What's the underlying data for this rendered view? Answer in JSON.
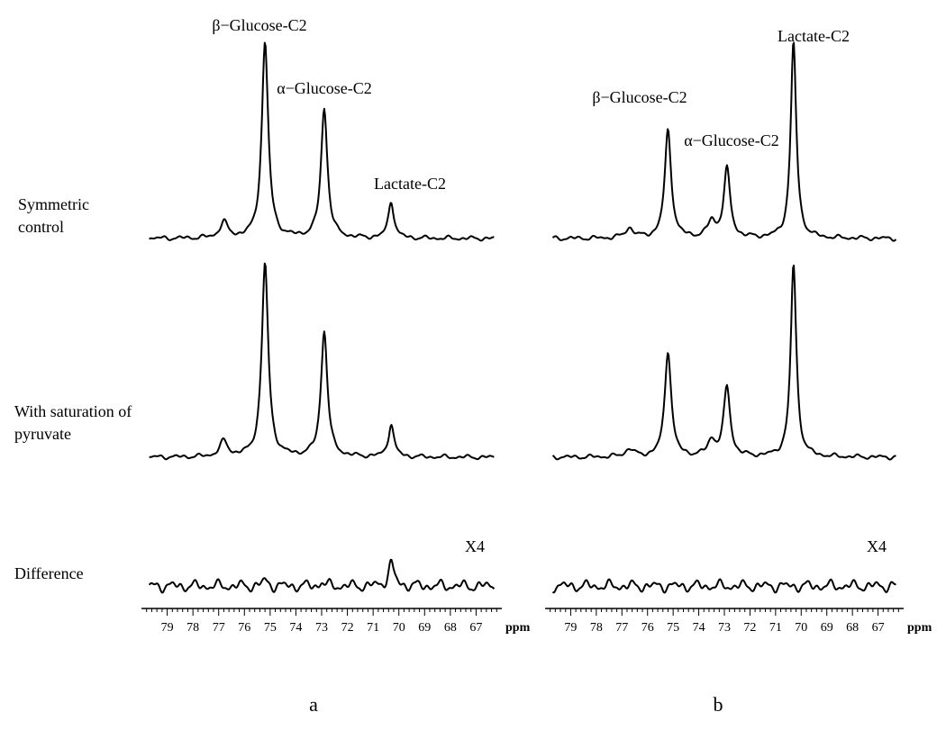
{
  "row_labels": {
    "symmetric": [
      "Symmetric",
      "control"
    ],
    "saturation": [
      "With saturation of",
      "pyruvate"
    ],
    "difference": [
      "Difference"
    ]
  },
  "panel_labels": [
    "a",
    "b"
  ],
  "chart_data": [
    {
      "type": "line",
      "panel": "a",
      "x_unit": "ppm",
      "xlim": [
        80,
        66
      ],
      "x_ticks": [
        79,
        78,
        77,
        76,
        75,
        74,
        73,
        72,
        71,
        70,
        69,
        68,
        67
      ],
      "spectra": [
        {
          "row": "symmetric",
          "peaks": [
            {
              "ppm": 76.8,
              "height": 0.08,
              "width": 0.18
            },
            {
              "ppm": 75.2,
              "height": 1.0,
              "width": 0.15
            },
            {
              "ppm": 72.9,
              "height": 0.66,
              "width": 0.15
            },
            {
              "ppm": 70.3,
              "height": 0.19,
              "width": 0.13
            }
          ],
          "annotations": [
            {
              "text": "β−Glucose-C2",
              "ppm": 75.2
            },
            {
              "text": "α−Glucose-C2",
              "ppm": 72.9
            },
            {
              "text": "Lactate-C2",
              "ppm": 70.3
            }
          ]
        },
        {
          "row": "saturation",
          "peaks": [
            {
              "ppm": 76.8,
              "height": 0.08,
              "width": 0.18
            },
            {
              "ppm": 75.2,
              "height": 1.0,
              "width": 0.15
            },
            {
              "ppm": 72.9,
              "height": 0.65,
              "width": 0.15
            },
            {
              "ppm": 70.3,
              "height": 0.17,
              "width": 0.13
            }
          ],
          "annotations": []
        },
        {
          "row": "difference",
          "scale_note": "X4",
          "peaks": [
            {
              "ppm": 75.2,
              "height": 0.2,
              "width": 0.12
            },
            {
              "ppm": 73.0,
              "height": 0.15,
              "width": 0.1
            },
            {
              "ppm": 70.3,
              "height": 0.85,
              "width": 0.13
            }
          ],
          "annotations": []
        }
      ]
    },
    {
      "type": "line",
      "panel": "b",
      "x_unit": "ppm",
      "xlim": [
        80,
        66
      ],
      "x_ticks": [
        79,
        78,
        77,
        76,
        75,
        74,
        73,
        72,
        71,
        70,
        69,
        68,
        67
      ],
      "spectra": [
        {
          "row": "symmetric",
          "peaks": [
            {
              "ppm": 76.7,
              "height": 0.05,
              "width": 0.2
            },
            {
              "ppm": 75.2,
              "height": 0.55,
              "width": 0.15
            },
            {
              "ppm": 73.5,
              "height": 0.08,
              "width": 0.18
            },
            {
              "ppm": 72.9,
              "height": 0.35,
              "width": 0.15
            },
            {
              "ppm": 70.3,
              "height": 1.0,
              "width": 0.13
            }
          ],
          "annotations": [
            {
              "text": "β−Glucose-C2",
              "ppm": 76.4
            },
            {
              "text": "α−Glucose-C2",
              "ppm": 73.6
            },
            {
              "text": "Lactate-C2",
              "ppm": 70.3
            }
          ]
        },
        {
          "row": "saturation",
          "peaks": [
            {
              "ppm": 76.7,
              "height": 0.04,
              "width": 0.2
            },
            {
              "ppm": 75.2,
              "height": 0.55,
              "width": 0.15
            },
            {
              "ppm": 73.5,
              "height": 0.08,
              "width": 0.18
            },
            {
              "ppm": 72.9,
              "height": 0.36,
              "width": 0.15
            },
            {
              "ppm": 70.3,
              "height": 1.0,
              "width": 0.13
            }
          ],
          "annotations": []
        },
        {
          "row": "difference",
          "scale_note": "X4",
          "peaks": [],
          "annotations": []
        }
      ]
    }
  ]
}
